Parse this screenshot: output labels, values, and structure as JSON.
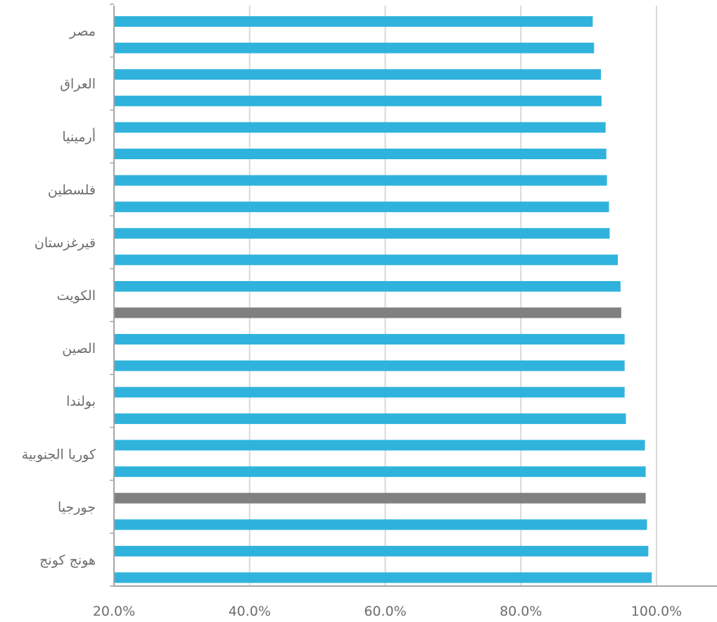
{
  "chart_data": {
    "type": "bar",
    "orientation": "horizontal",
    "title": "",
    "xlabel": "",
    "ylabel": "",
    "xlim": [
      20,
      110
    ],
    "x_ticks": [
      20,
      40,
      60,
      80,
      100
    ],
    "x_tick_labels": [
      "20.0%",
      "40.0%",
      "60.0%",
      "80.0%",
      "100.0%"
    ],
    "grid": "vertical",
    "legend": "none",
    "colors": {
      "bar": "#2fb3dd",
      "highlight": "#808080",
      "grid": "#d9d9d9",
      "axis": "#a6a6a6",
      "text": "#6d6d6d"
    },
    "category_labels": [
      "مصر",
      "العراق",
      "أرمينيا",
      "فلسطين",
      "قيرغزستان",
      "الكويت",
      "الصين",
      "بولندا",
      "كوريا الجنوبية",
      "جورجيا",
      "هونج كونج"
    ],
    "bars": [
      {
        "value": 90.6,
        "highlight": false
      },
      {
        "value": 90.8,
        "highlight": false
      },
      {
        "value": 91.8,
        "highlight": false
      },
      {
        "value": 91.9,
        "highlight": false
      },
      {
        "value": 92.5,
        "highlight": false
      },
      {
        "value": 92.6,
        "highlight": false
      },
      {
        "value": 92.7,
        "highlight": false
      },
      {
        "value": 93.0,
        "highlight": false
      },
      {
        "value": 93.1,
        "highlight": false
      },
      {
        "value": 94.3,
        "highlight": false
      },
      {
        "value": 94.7,
        "highlight": false
      },
      {
        "value": 94.8,
        "highlight": true
      },
      {
        "value": 95.3,
        "highlight": false
      },
      {
        "value": 95.3,
        "highlight": false
      },
      {
        "value": 95.3,
        "highlight": false
      },
      {
        "value": 95.5,
        "highlight": false
      },
      {
        "value": 98.3,
        "highlight": false
      },
      {
        "value": 98.4,
        "highlight": false
      },
      {
        "value": 98.4,
        "highlight": true
      },
      {
        "value": 98.6,
        "highlight": false
      },
      {
        "value": 98.8,
        "highlight": false
      },
      {
        "value": 99.3,
        "highlight": false
      }
    ]
  }
}
